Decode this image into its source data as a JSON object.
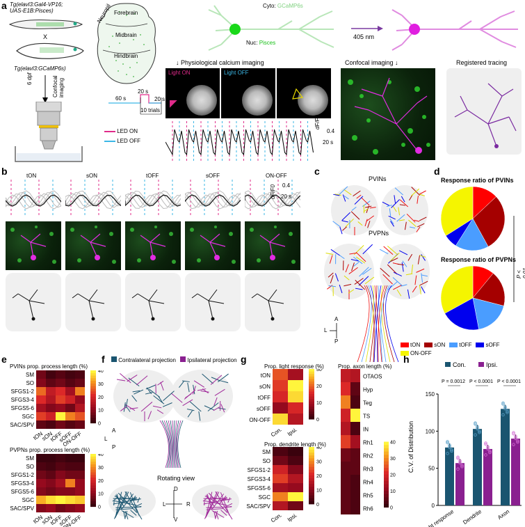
{
  "panel_a": {
    "letter": "a",
    "fish_top_label": "Tg(elavl3:Gal4-VP16;\nUAS-E1B:Pisces)",
    "cross": "X",
    "fish_bottom_label": "Tg(elavl3:GCaMP6s)",
    "dpf": "6 dpf",
    "confocal_imaging_vertical": "Confocal imaging",
    "brain_regions": [
      "Forebrain",
      "Midbrain",
      "Hindbrain",
      "Neuropil"
    ],
    "cyto_label": "Cyto:",
    "cyto_value": "GCaMP6s",
    "nuc_label": "Nuc:",
    "nuc_value": "Pisces",
    "laser": "405 nm",
    "physio_title": "Physiological calcium imaging",
    "light_on": "Light ON",
    "light_off": "Light OFF",
    "confocal_title": "Confocal imaging",
    "registered_title": "Registered tracing",
    "protocol": {
      "t60": "60 s",
      "t20a": "20 s",
      "t20b": "20 s",
      "trials": "10 trials"
    },
    "legend_on": "LED ON",
    "legend_off": "LED OFF",
    "scale_y": "0.4",
    "scale_x": "20 s",
    "dff_label": "dF/F0"
  },
  "panel_b": {
    "letter": "b",
    "types": [
      "tON",
      "sON",
      "tOFF",
      "sOFF",
      "ON-OFF"
    ],
    "scale_y": "0.4",
    "scale_x": "20 s",
    "dff_label": "dF/F0"
  },
  "panel_c": {
    "letter": "c",
    "top_label": "PVINs",
    "bottom_label": "PVPNs",
    "axes": {
      "a": "A",
      "p": "P",
      "l": "L"
    }
  },
  "panel_d": {
    "letter": "d",
    "title_top": "Response ratio of PVINs",
    "title_bottom": "Response ratio of PVPNs",
    "pvalue": "P < 0.01",
    "legend": [
      "tON",
      "sON",
      "tOFF",
      "sOFF",
      "ON-OFF"
    ],
    "colors": {
      "tON": "#ff0000",
      "sON": "#a50000",
      "tOFF": "#4a9dff",
      "sOFF": "#0000ee",
      "ON-OFF": "#f5f500"
    },
    "pvins": [
      13,
      29,
      17,
      7,
      34
    ],
    "pvpns": [
      11,
      18,
      18,
      20,
      33
    ]
  },
  "panel_e": {
    "letter": "e",
    "title_top": "PVINs prop. process length (%)",
    "title_bottom": "PVPNs prop. process length (%)",
    "rows": [
      "SM",
      "SO",
      "SFGS1-2",
      "SFGS3-4",
      "SFGS5-6",
      "SGC",
      "SAC/SPV"
    ],
    "cols": [
      "tON",
      "sON",
      "tOFF",
      "sOFF",
      "ON-OFF"
    ],
    "colorbar": [
      "40",
      "30",
      "20",
      "10",
      "0"
    ],
    "top_values": [
      [
        8,
        3,
        5,
        3,
        4
      ],
      [
        10,
        6,
        8,
        5,
        7
      ],
      [
        28,
        18,
        22,
        14,
        30
      ],
      [
        22,
        16,
        24,
        20,
        12
      ],
      [
        14,
        10,
        12,
        8,
        16
      ],
      [
        24,
        20,
        40,
        30,
        26
      ],
      [
        6,
        4,
        8,
        5,
        7
      ]
    ],
    "bottom_values": [
      [
        2,
        2,
        3,
        2,
        2
      ],
      [
        4,
        3,
        5,
        4,
        4
      ],
      [
        8,
        6,
        10,
        8,
        8
      ],
      [
        12,
        10,
        14,
        30,
        12
      ],
      [
        10,
        8,
        10,
        10,
        12
      ],
      [
        34,
        38,
        40,
        38,
        36
      ],
      [
        10,
        12,
        8,
        10,
        12
      ]
    ]
  },
  "panel_f": {
    "letter": "f",
    "legend_contra": "Contralateral projection",
    "legend_ipsi": "Ipsilateral projection",
    "rotating": "Rotating view",
    "axes_top": {
      "a": "A",
      "p": "P",
      "l": "L"
    },
    "axes_bottom": {
      "d": "D",
      "v": "V",
      "l": "L",
      "r": "R"
    }
  },
  "panel_g": {
    "letter": "g",
    "title_light": "Prop. light response (%)",
    "light_rows": [
      "tON",
      "sON",
      "tOFF",
      "sOFF",
      "ON-OFF"
    ],
    "light_cols": [
      "Con.",
      "Ipsi."
    ],
    "light_colorbar": [
      "30",
      "20",
      "10",
      "0"
    ],
    "light_values": [
      [
        22,
        12
      ],
      [
        20,
        34
      ],
      [
        18,
        32
      ],
      [
        10,
        18
      ],
      [
        32,
        14
      ]
    ],
    "title_dend": "Prop. dendrite length (%)",
    "dend_rows": [
      "SM",
      "SO",
      "SFGS1-2",
      "SFGS3-4",
      "SFGS5-6",
      "SGC",
      "SAC/SPV"
    ],
    "dend_colorbar": [
      "40",
      "30",
      "20",
      "10",
      "0"
    ],
    "dend_values": [
      [
        4,
        2
      ],
      [
        8,
        4
      ],
      [
        20,
        10
      ],
      [
        24,
        16
      ],
      [
        14,
        12
      ],
      [
        30,
        40
      ],
      [
        16,
        8
      ]
    ],
    "title_axon": "Prop. axon length (%)",
    "axon_rows": [
      "OTAOS",
      "Hyp",
      "Teg",
      "TS",
      "IN",
      "Rh1",
      "Rh2",
      "Rh3",
      "Rh4",
      "Rh5",
      "Rh6"
    ],
    "axon_colorbar": [
      "40",
      "30",
      "20",
      "10",
      "0"
    ],
    "axon_con": [
      18,
      22,
      30,
      20,
      16,
      24,
      8,
      6,
      6,
      6,
      6
    ],
    "axon_ipsi": [
      16,
      6,
      4,
      40,
      4,
      14,
      6,
      6,
      4,
      4,
      4
    ]
  },
  "panel_h": {
    "letter": "h",
    "legend_con": "Con.",
    "legend_ipsi": "Ipsi.",
    "ylabel": "C.V. of Distribution",
    "yticks": [
      "0",
      "50",
      "100",
      "150"
    ],
    "ylim": [
      0,
      150
    ],
    "categories": [
      "Light response",
      "Dendrite",
      "Axon"
    ],
    "pvalues": [
      "P = 0.0012",
      "P < 0.0001",
      "P < 0.0001"
    ],
    "colors": {
      "con": "#1a5570",
      "ipsi": "#8a2090"
    },
    "chart_data": {
      "type": "bar",
      "categories": [
        "Light response",
        "Dendrite",
        "Axon"
      ],
      "series": [
        {
          "name": "Con.",
          "values": [
            78,
            103,
            130
          ]
        },
        {
          "name": "Ipsi.",
          "values": [
            57,
            76,
            90
          ]
        }
      ],
      "ylabel": "C.V. of Distribution",
      "ylim": [
        0,
        150
      ]
    }
  }
}
